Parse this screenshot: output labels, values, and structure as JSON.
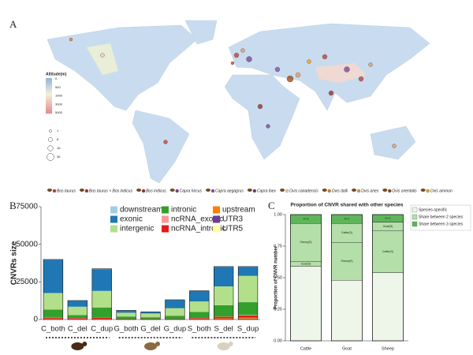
{
  "panel_labels": {
    "a": "A",
    "b": "B",
    "c": "C"
  },
  "map": {
    "altitude_legend": {
      "title": "Altitude(m)",
      "ticks": [
        0,
        500,
        1000,
        3000,
        5000
      ]
    },
    "size_legend": [
      1,
      8,
      16,
      36
    ],
    "species": [
      {
        "name": "Bos taurus",
        "color": "#c0392b"
      },
      {
        "name": "Bos taurus × Bos indicus",
        "color": "#a93226"
      },
      {
        "name": "Bos indicus",
        "color": "#922b21"
      },
      {
        "name": "Capra hircus",
        "color": "#7d3c98"
      },
      {
        "name": "Capra aegagrus",
        "color": "#8e44ad"
      },
      {
        "name": "Capra ibex",
        "color": "#6c3483"
      },
      {
        "name": "Ovis canadensis",
        "color": "#f5cba7"
      },
      {
        "name": "Ovis dalli",
        "color": "#e67e22"
      },
      {
        "name": "Ovis aries",
        "color": "#eb984e"
      },
      {
        "name": "Ovis orientalis",
        "color": "#a04000"
      },
      {
        "name": "Ovis ammon",
        "color": "#f39c12"
      }
    ]
  },
  "chart_data": [
    {
      "type": "stacked_bar",
      "y_label": "CNVRs size",
      "categories": [
        "C_both",
        "C_del",
        "C_dup",
        "G_both",
        "G_del",
        "G_dup",
        "S_both",
        "S_del",
        "S_dup"
      ],
      "category_colors": [
        "#8b4513",
        "#c8a000",
        "#3a9a3a",
        "#8b4513",
        "#c8a000",
        "#3a9a3a",
        "#8b4513",
        "#c8a000",
        "#3a9a3a"
      ],
      "ylim": [
        0,
        75000
      ],
      "yticks": [
        0,
        25000,
        50000,
        75000
      ],
      "series": [
        {
          "name": "downstream",
          "color": "#a6cee3",
          "values": [
            300,
            100,
            200,
            50,
            50,
            100,
            100,
            200,
            200
          ]
        },
        {
          "name": "exonic",
          "color": "#1f78b4",
          "values": [
            22000,
            4000,
            14500,
            1500,
            1000,
            5500,
            7000,
            13000,
            6000
          ]
        },
        {
          "name": "intergenic",
          "color": "#b2df8a",
          "values": [
            11000,
            5500,
            11000,
            2500,
            2500,
            5000,
            7000,
            12500,
            17500
          ]
        },
        {
          "name": "intronic",
          "color": "#33a02c",
          "values": [
            5000,
            2000,
            6500,
            1500,
            1000,
            2000,
            4000,
            7500,
            8500
          ]
        },
        {
          "name": "ncRNA_exonic",
          "color": "#fb9a99",
          "values": [
            200,
            100,
            200,
            50,
            50,
            50,
            100,
            200,
            300
          ]
        },
        {
          "name": "ncRNA_intronic",
          "color": "#e31a1c",
          "values": [
            800,
            500,
            800,
            250,
            250,
            250,
            500,
            1000,
            1500
          ]
        },
        {
          "name": "upstream",
          "color": "#ff7f00",
          "values": [
            300,
            200,
            300,
            100,
            100,
            100,
            200,
            400,
            600
          ]
        },
        {
          "name": "UTR3",
          "color": "#6a3d9a",
          "values": [
            200,
            100,
            100,
            50,
            50,
            50,
            100,
            200,
            300
          ]
        },
        {
          "name": "UTR5",
          "color": "#ffff99",
          "values": [
            100,
            100,
            100,
            50,
            50,
            50,
            100,
            200,
            300
          ]
        }
      ]
    },
    {
      "type": "stacked_bar",
      "title": "Proportion of CNVR shared with other species",
      "y_label": "Proportion  of  CNVR number",
      "categories": [
        "Cattle",
        "Goat",
        "Sheep"
      ],
      "ylim": [
        0,
        1
      ],
      "yticks": [
        {
          "value": 0,
          "label": "0.00"
        },
        {
          "value": 0.25,
          "label": "0.25"
        },
        {
          "value": 0.5,
          "label": "0.50"
        },
        {
          "value": 0.75,
          "label": "0.75"
        },
        {
          "value": 1,
          "label": "1.00"
        }
      ],
      "series": [
        {
          "name": "Species-specific",
          "color": "#eef6e9",
          "values": [
            0.59,
            0.48,
            0.54
          ]
        },
        {
          "name": "Share between 2 species",
          "color": "#b5dfa9",
          "parts": [
            {
              "labels": [
                "Goat(S)",
                "Sheep(S)",
                "Cattle(S)"
              ],
              "values": [
                0.04,
                0.3,
                0.33
              ]
            },
            {
              "labels": [
                "Sheep(S)",
                "Cattle(S)",
                "Goat(S)"
              ],
              "values": [
                0.3,
                0.15,
                0.07
              ]
            }
          ]
        },
        {
          "name": "Share between 3 species",
          "color": "#5fb65a",
          "values": [
            0.07,
            0.07,
            0.06
          ],
          "segment_labels": [
            "S+G",
            "S+C",
            "G+C"
          ]
        }
      ]
    }
  ]
}
